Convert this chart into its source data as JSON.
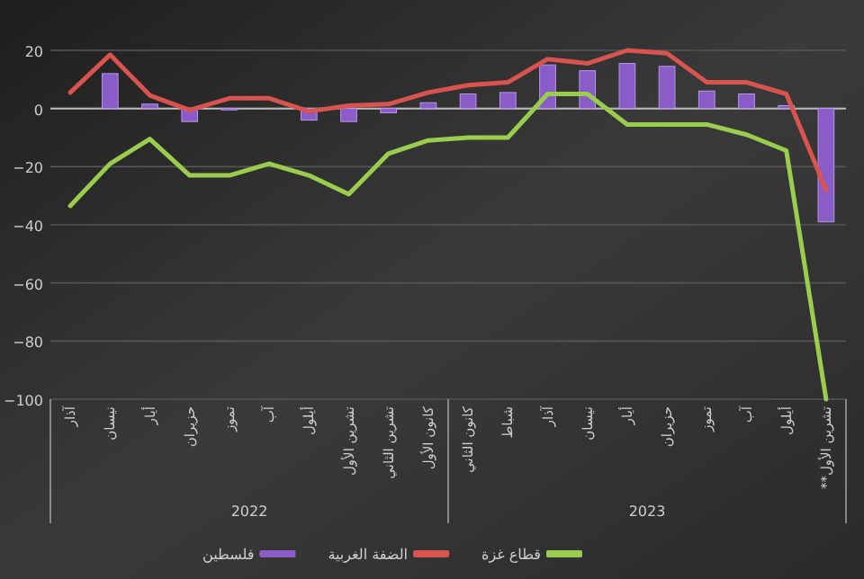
{
  "chart_data": {
    "type": "bar",
    "categories": [
      "آذار",
      "نيسان",
      "أيار",
      "حزيران",
      "تموز",
      "آب",
      "أيلول",
      "تشرين الأول",
      "تشرين الثاني",
      "كانون الأول",
      "كانون الثاني",
      "شباط",
      "آذار",
      "نيسان",
      "أيار",
      "حزيران",
      "تموز",
      "آب",
      "أيلول",
      "تشرين الأول**"
    ],
    "series": [
      {
        "name": "فلسطين",
        "color": "#8a5cc8",
        "values": [
          0,
          12,
          1.5,
          -4.5,
          -0.5,
          0,
          -4,
          -4.5,
          -1.5,
          2,
          5,
          5.5,
          15,
          13,
          15.5,
          14.5,
          6,
          5,
          1,
          -39
        ]
      },
      {
        "name": "الضفة الغربية",
        "type": "line",
        "color": "#d9534f",
        "values": [
          5.5,
          18.5,
          4.5,
          -0.5,
          3.5,
          3.5,
          -1,
          1,
          1.5,
          5.5,
          8,
          9,
          17,
          15.5,
          20,
          19,
          9,
          9,
          5,
          -28
        ]
      },
      {
        "name": "قطاع غزة",
        "type": "line",
        "color": "#9acd4e",
        "values": [
          -33.5,
          -19,
          -10.5,
          -23,
          -23,
          -19,
          -23,
          -29.5,
          -15.5,
          -11,
          -10,
          -10,
          5,
          5,
          -5.5,
          -5.5,
          -5.5,
          -9,
          -14.5,
          -100
        ]
      }
    ],
    "ylim": [
      -100,
      20
    ],
    "yticks": [
      -100,
      -80,
      -60,
      -40,
      -20,
      0,
      20
    ],
    "grid": "y",
    "legend": "bottom",
    "annotations": [
      "2022",
      "2023"
    ]
  }
}
